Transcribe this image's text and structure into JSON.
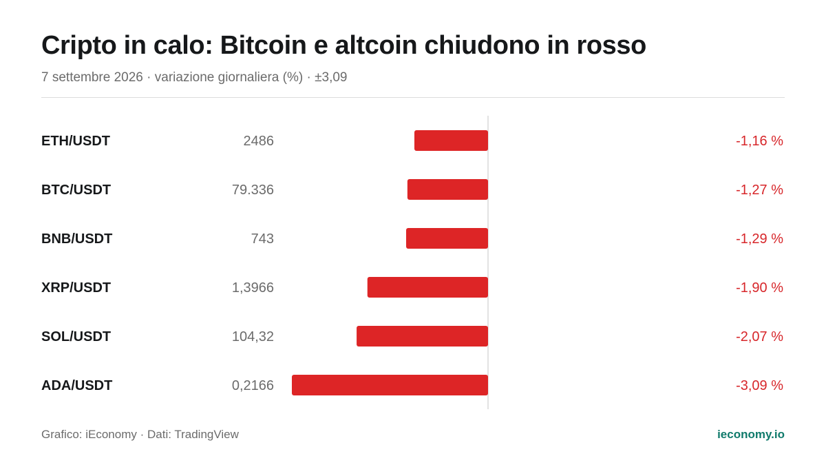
{
  "title": "Cripto in calo: Bitcoin e altcoin chiudono in rosso",
  "subtitle": "7 settembre 2026 · variazione giornaliera (%) · ±3,09",
  "footer": {
    "source": "Grafico: iEconomy · Dati: TradingView",
    "brand": "ieconomy.io"
  },
  "colors": {
    "bar": "#dd2526",
    "change_text": "#d7262a",
    "brand": "#0f7a6b",
    "axis": "#d9d9d9"
  },
  "chart_data": {
    "type": "bar",
    "orientation": "horizontal",
    "title": "Cripto in calo: Bitcoin e altcoin chiudono in rosso",
    "subtitle": "7 settembre 2026 · variazione giornaliera (%) · ±3,09",
    "xlim": [
      -3.09,
      3.09
    ],
    "categories": [
      "ETH/USDT",
      "BTC/USDT",
      "BNB/USDT",
      "XRP/USDT",
      "SOL/USDT",
      "ADA/USDT"
    ],
    "prices": [
      "2486",
      "79.336",
      "743",
      "1,3966",
      "104,32",
      "0,2166"
    ],
    "values": [
      -1.16,
      -1.27,
      -1.29,
      -1.9,
      -2.07,
      -3.09
    ],
    "value_labels": [
      "-1,16 %",
      "-1,27 %",
      "-1,29 %",
      "-1,90 %",
      "-2,07 %",
      "-3,09 %"
    ],
    "grid": false,
    "legend": "none"
  }
}
